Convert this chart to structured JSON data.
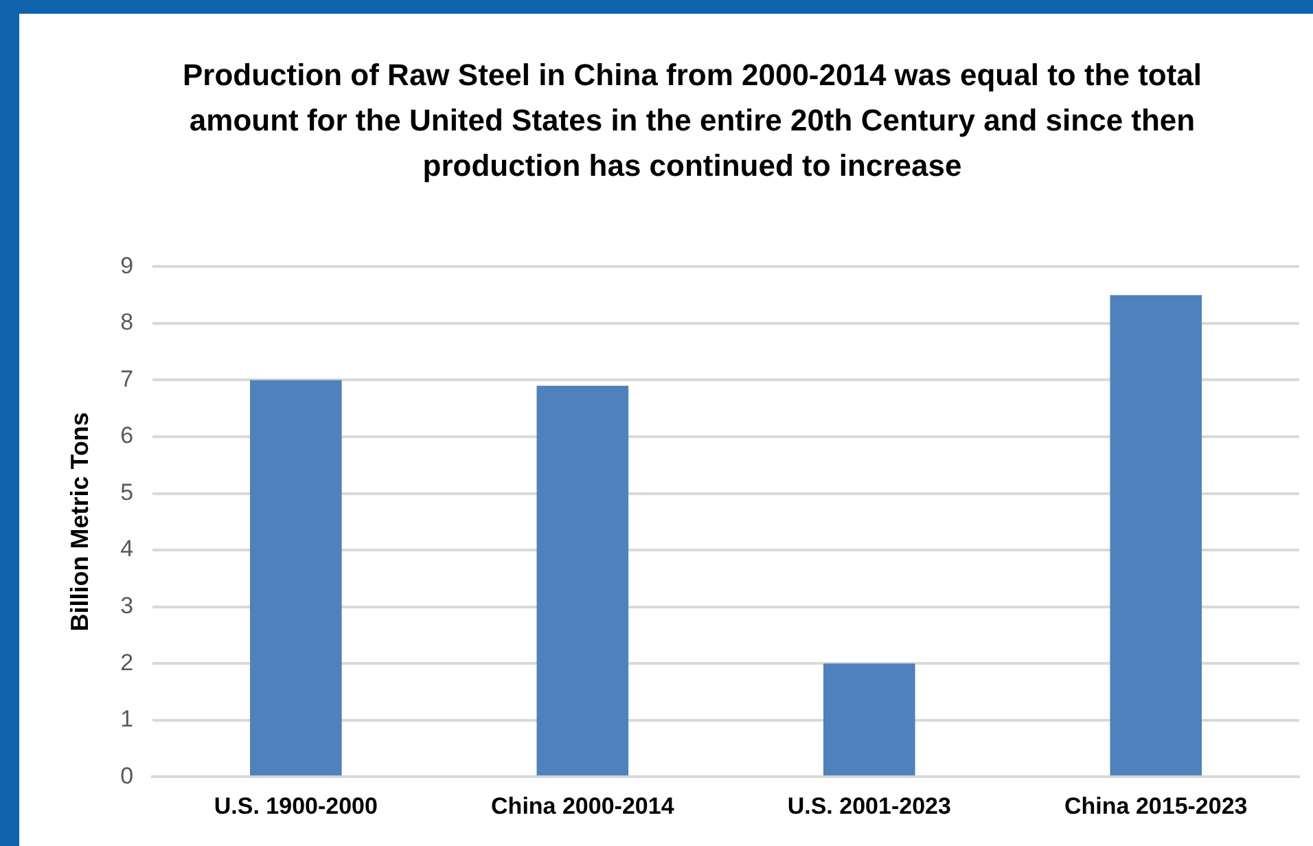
{
  "chart_data": {
    "type": "bar",
    "title": "Production of Raw Steel in China from 2000-2014 was equal to the total amount for the United States in the entire 20th Century and since then production has continued to increase",
    "ylabel": "Billion Metric Tons",
    "categories": [
      "U.S. 1900-2000",
      "China 2000-2014",
      "U.S. 2001-2023",
      "China 2015-2023"
    ],
    "values": [
      7.0,
      6.9,
      2.0,
      8.5
    ],
    "color": "#4f81bd",
    "ylim": [
      0,
      9
    ],
    "yticks": [
      0,
      1,
      2,
      3,
      4,
      5,
      6,
      7,
      8,
      9
    ],
    "grid": "y",
    "legend": false
  }
}
